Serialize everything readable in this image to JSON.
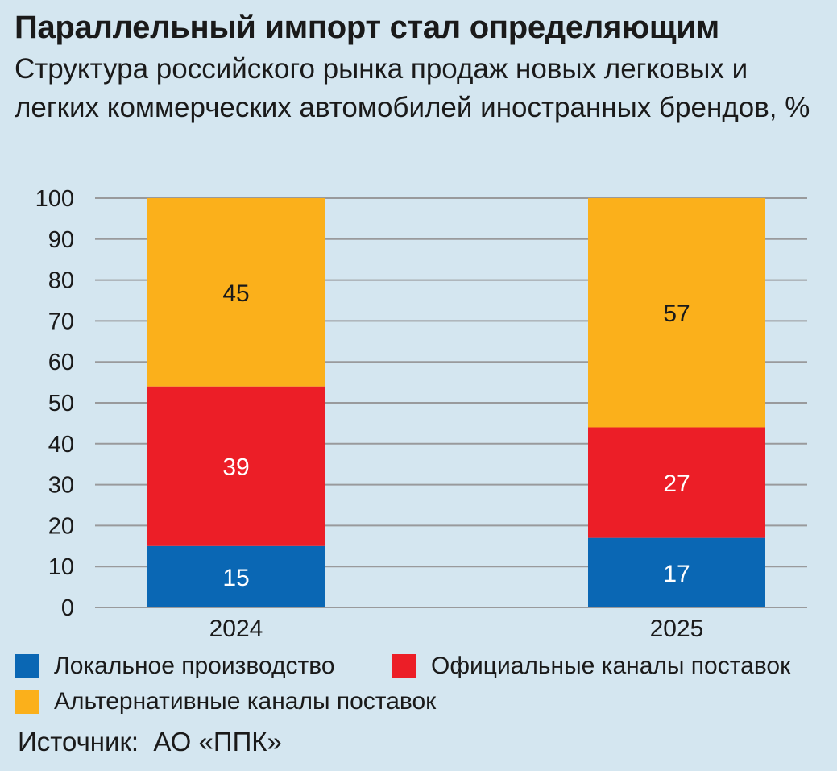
{
  "title": "Параллельный импорт стал определяющим",
  "subtitle": "Структура российского рынка продаж новых легковых и легких коммерческих автомобилей иностранных брендов, %",
  "source": "Источник:  АО «ППК»",
  "colors": {
    "background": "#d4e6f0",
    "local": "#0a67b4",
    "official": "#ec1e27",
    "alternative": "#fbb01b",
    "grid": "#999a9c"
  },
  "chart_data": {
    "type": "bar",
    "stacked": true,
    "categories": [
      "2024",
      "2025"
    ],
    "series": [
      {
        "name": "Локальное производство",
        "values": [
          15,
          17
        ]
      },
      {
        "name": "Официальные каналы поставок",
        "values": [
          39,
          27
        ]
      },
      {
        "name": "Альтернативные каналы поставок",
        "values": [
          45,
          57
        ]
      }
    ],
    "data_labels": [
      [
        "15",
        "39",
        "45"
      ],
      [
        "17",
        "27",
        "57"
      ]
    ],
    "ylim": [
      0,
      100
    ],
    "yticks": [
      "0",
      "10",
      "20",
      "30",
      "40",
      "50",
      "60",
      "70",
      "80",
      "90",
      "100"
    ],
    "grid": true,
    "legend_position": "bottom"
  }
}
